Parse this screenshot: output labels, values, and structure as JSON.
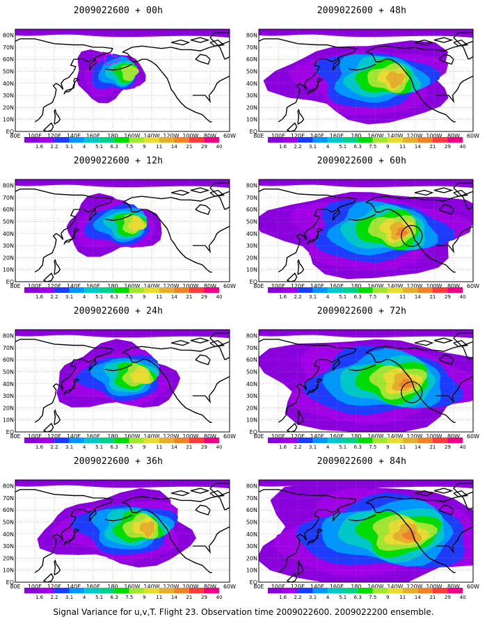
{
  "colors": {
    "levels": [
      "#8a00dc",
      "#a000e6",
      "#1e3cff",
      "#0096ff",
      "#00c8c8",
      "#00d28c",
      "#00dc00",
      "#a0e632",
      "#e6dc32",
      "#e6af2d",
      "#f08228",
      "#fa3c3c",
      "#f00082"
    ],
    "land_outline": "#000000",
    "highlight_contour": "#ff00ff"
  },
  "colorbar": {
    "ticks": [
      "1.6",
      "2.2",
      "3.1",
      "4",
      "5.1",
      "6.3",
      "7.5",
      "9",
      "11",
      "14",
      "21",
      "29",
      "40"
    ]
  },
  "axes": {
    "lat_labels": [
      "80N",
      "70N",
      "60N",
      "50N",
      "40N",
      "30N",
      "20N",
      "10N",
      "EQ"
    ],
    "lon_labels": [
      "80E",
      "100E",
      "120E",
      "140E",
      "160E",
      "180",
      "160W",
      "140W",
      "120W",
      "100W",
      "80W",
      "60W"
    ]
  },
  "panels": [
    {
      "id": "p00",
      "title": "2009022600 + 00h",
      "level": 0
    },
    {
      "id": "p12",
      "title": "2009022600 + 12h",
      "level": 1
    },
    {
      "id": "p24",
      "title": "2009022600 + 24h",
      "level": 2
    },
    {
      "id": "p36",
      "title": "2009022600 + 36h",
      "level": 3
    },
    {
      "id": "p48",
      "title": "2009022600 + 48h",
      "level": 4
    },
    {
      "id": "p60",
      "title": "2009022600 + 60h",
      "level": 5
    },
    {
      "id": "p72",
      "title": "2009022600 + 72h",
      "level": 6
    },
    {
      "id": "p84",
      "title": "2009022600 + 84h",
      "level": 7
    }
  ],
  "caption": "Signal Variance for u,v,T. Flight 23. Observation time 2009022600. 2009022200 ensemble."
}
